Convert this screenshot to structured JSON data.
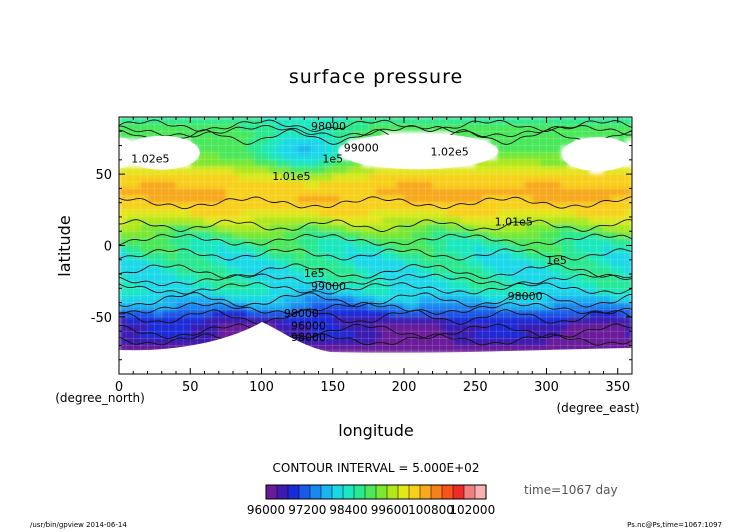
{
  "chart_data": {
    "type": "heatmap",
    "title": "surface pressure",
    "xlabel": "longitude",
    "ylabel": "latitude",
    "x_unit_label": "(degree_east)",
    "y_unit_label": "(degree_north)",
    "xlim": [
      0,
      360
    ],
    "ylim": [
      -90,
      90
    ],
    "x_ticks": [
      "0",
      "50",
      "100",
      "150",
      "200",
      "250",
      "300",
      "350"
    ],
    "y_ticks": [
      "50",
      "0",
      "-50"
    ],
    "contour_interval_text": "CONTOUR INTERVAL = 5.000E+02",
    "time_text": "time=1067 day",
    "colorbar_tick_labels": [
      "96000",
      "97200",
      "98400",
      "99600",
      "100800",
      "102000"
    ],
    "colorbar_min": 96000,
    "colorbar_max": 102400,
    "colorbar_step": 400,
    "colorbar_colors": [
      "#6a1a9a",
      "#3a1ab0",
      "#1a2ad8",
      "#1a5ae8",
      "#1a88f0",
      "#1ab4f0",
      "#1ad8e8",
      "#1ae8c0",
      "#2ae890",
      "#4ae85a",
      "#7ae830",
      "#b0e81a",
      "#e0e81a",
      "#f8d01a",
      "#f8a81a",
      "#f8801a",
      "#f8541a",
      "#ee2a2a",
      "#f08080",
      "#f8b0b0"
    ],
    "contour_labels": [
      {
        "text": "98000",
        "lon": 147,
        "lat": 81
      },
      {
        "text": "1.02e5",
        "lon": 22,
        "lat": 58
      },
      {
        "text": "1.01e5",
        "lon": 121,
        "lat": 46
      },
      {
        "text": "1e5",
        "lon": 150,
        "lat": 58
      },
      {
        "text": "99000",
        "lon": 170,
        "lat": 66
      },
      {
        "text": "1.02e5",
        "lon": 232,
        "lat": 63
      },
      {
        "text": "1.01e5",
        "lon": 277,
        "lat": 14
      },
      {
        "text": "1e5",
        "lon": 137,
        "lat": -22
      },
      {
        "text": "1e5",
        "lon": 307,
        "lat": -13
      },
      {
        "text": "99000",
        "lon": 147,
        "lat": -31
      },
      {
        "text": "98000",
        "lon": 285,
        "lat": -38
      },
      {
        "text": "98000",
        "lon": 128,
        "lat": -50
      },
      {
        "text": "96000",
        "lon": 133,
        "lat": -59
      },
      {
        "text": "98000",
        "lon": 133,
        "lat": -67
      }
    ]
  },
  "footer": {
    "left": "/usr/bin/gpview  2014-06-14",
    "right": "Ps.nc@Ps,time=1067:1097"
  }
}
